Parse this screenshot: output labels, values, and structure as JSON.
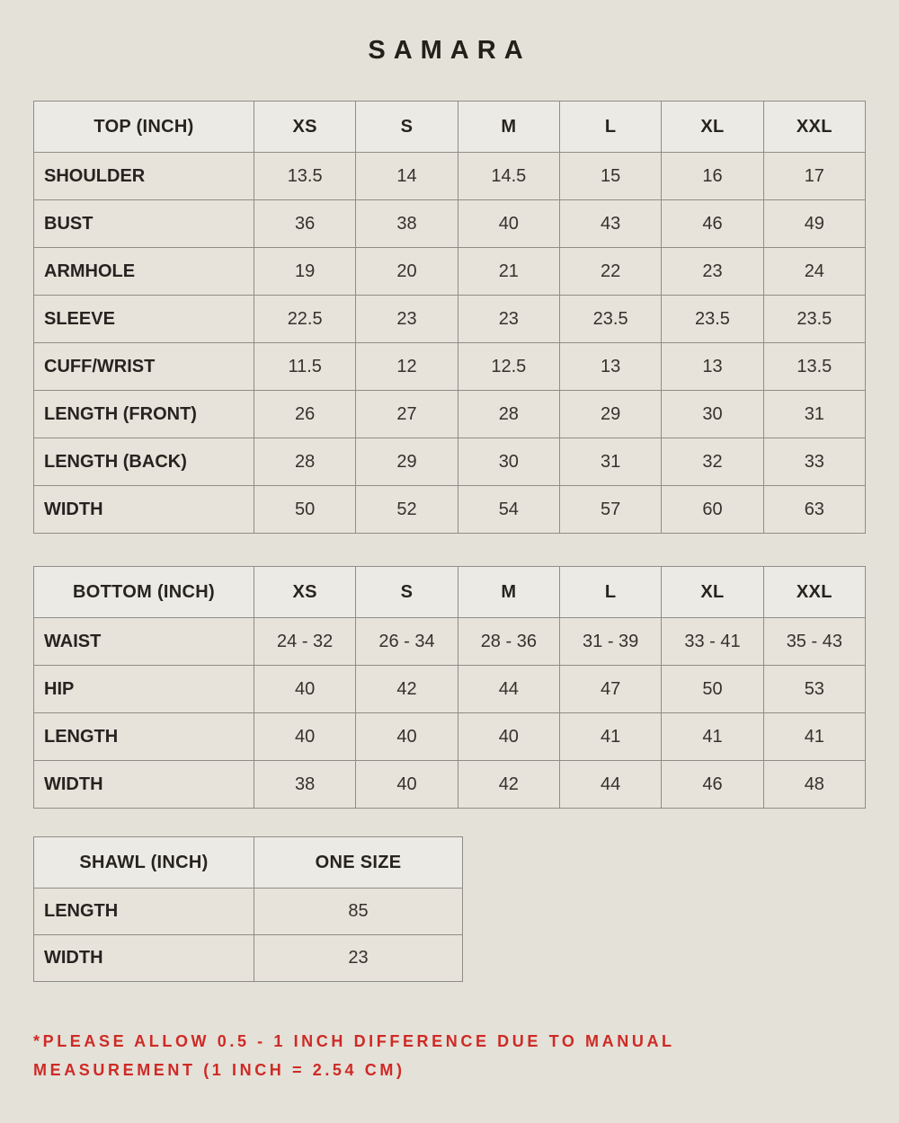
{
  "title": "SAMARA",
  "colors": {
    "page_background": "#e4e1d8",
    "header_cell_background": "#eceae5",
    "body_cell_background": "#e7e3da",
    "border": "#8f8d87",
    "text": "#262320",
    "disclaimer_red": "#ce2a26"
  },
  "tables": [
    {
      "header": [
        "TOP (INCH)",
        "XS",
        "S",
        "M",
        "L",
        "XL",
        "XXL"
      ],
      "rows": [
        {
          "label": "SHOULDER",
          "values": [
            "13.5",
            "14",
            "14.5",
            "15",
            "16",
            "17"
          ]
        },
        {
          "label": "BUST",
          "values": [
            "36",
            "38",
            "40",
            "43",
            "46",
            "49"
          ]
        },
        {
          "label": "ARMHOLE",
          "values": [
            "19",
            "20",
            "21",
            "22",
            "23",
            "24"
          ]
        },
        {
          "label": "SLEEVE",
          "values": [
            "22.5",
            "23",
            "23",
            "23.5",
            "23.5",
            "23.5"
          ]
        },
        {
          "label": "CUFF/WRIST",
          "values": [
            "11.5",
            "12",
            "12.5",
            "13",
            "13",
            "13.5"
          ]
        },
        {
          "label": "LENGTH (FRONT)",
          "values": [
            "26",
            "27",
            "28",
            "29",
            "30",
            "31"
          ]
        },
        {
          "label": "LENGTH (BACK)",
          "values": [
            "28",
            "29",
            "30",
            "31",
            "32",
            "33"
          ]
        },
        {
          "label": "WIDTH",
          "values": [
            "50",
            "52",
            "54",
            "57",
            "60",
            "63"
          ]
        }
      ]
    },
    {
      "header": [
        "BOTTOM (INCH)",
        "XS",
        "S",
        "M",
        "L",
        "XL",
        "XXL"
      ],
      "rows": [
        {
          "label": "WAIST",
          "values": [
            "24 - 32",
            "26 - 34",
            "28 - 36",
            "31 - 39",
            "33 - 41",
            "35 - 43"
          ]
        },
        {
          "label": "HIP",
          "values": [
            "40",
            "42",
            "44",
            "47",
            "50",
            "53"
          ]
        },
        {
          "label": "LENGTH",
          "values": [
            "40",
            "40",
            "40",
            "41",
            "41",
            "41"
          ]
        },
        {
          "label": "WIDTH",
          "values": [
            "38",
            "40",
            "42",
            "44",
            "46",
            "48"
          ]
        }
      ]
    },
    {
      "header": [
        "SHAWL (INCH)",
        "ONE SIZE"
      ],
      "rows": [
        {
          "label": "LENGTH",
          "values": [
            "85"
          ]
        },
        {
          "label": "WIDTH",
          "values": [
            "23"
          ]
        }
      ]
    }
  ],
  "disclaimer": {
    "line1": "*PLEASE ALLOW 0.5 - 1 INCH DIFFERENCE DUE TO MANUAL",
    "line2": "MEASUREMENT (1 INCH = 2.54 CM)"
  }
}
